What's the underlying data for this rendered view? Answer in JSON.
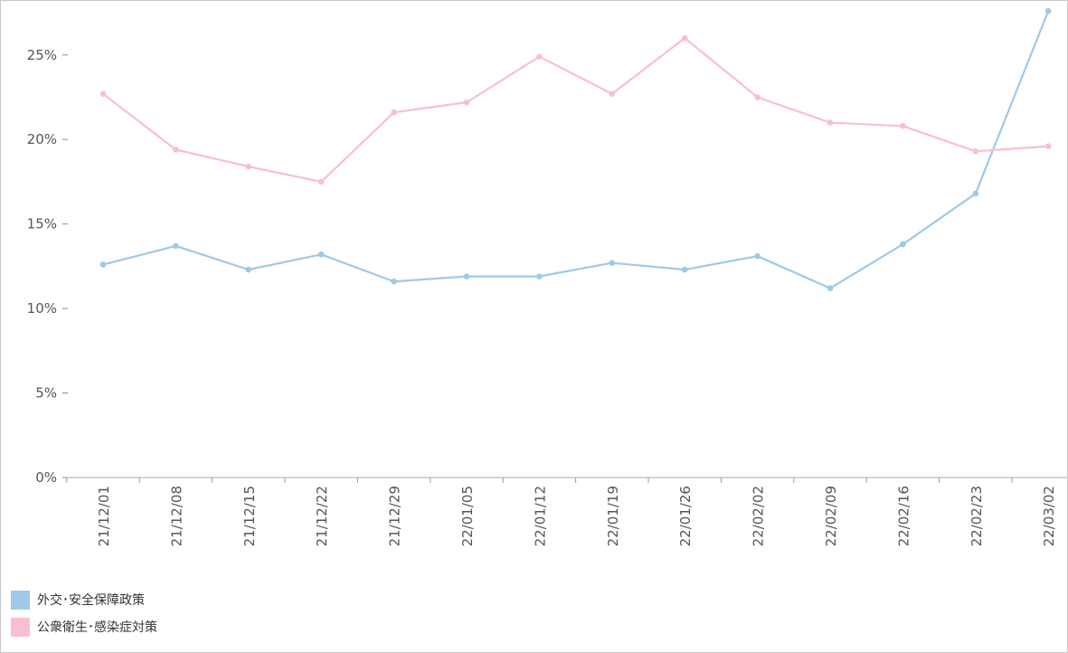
{
  "chart_data": {
    "type": "line",
    "title": "",
    "xlabel": "",
    "ylabel": "",
    "categories": [
      "21/12/01",
      "21/12/08",
      "21/12/15",
      "21/12/22",
      "21/12/29",
      "22/01/05",
      "22/01/12",
      "22/01/19",
      "22/01/26",
      "22/02/02",
      "22/02/09",
      "22/02/16",
      "22/02/23",
      "22/03/02"
    ],
    "ylim": [
      0,
      28.2
    ],
    "yticks": [
      0,
      5,
      10,
      15,
      20,
      25
    ],
    "ytick_labels": [
      "0%",
      "5%",
      "10%",
      "15%",
      "20%",
      "25%"
    ],
    "grid": false,
    "legend_position": "bottom-left",
    "series": [
      {
        "name": "外交･安全保障政策",
        "color": "#9ecae8",
        "values": [
          12.6,
          13.7,
          12.3,
          13.2,
          11.6,
          11.9,
          11.9,
          12.7,
          12.3,
          13.1,
          11.2,
          13.8,
          16.8,
          27.6
        ]
      },
      {
        "name": "公衆衛生･感染症対策",
        "color": "#f8bfd3",
        "values": [
          22.7,
          19.4,
          18.4,
          17.5,
          21.6,
          22.2,
          24.9,
          22.7,
          26.0,
          22.5,
          21.0,
          20.8,
          19.3,
          19.6
        ]
      }
    ]
  }
}
